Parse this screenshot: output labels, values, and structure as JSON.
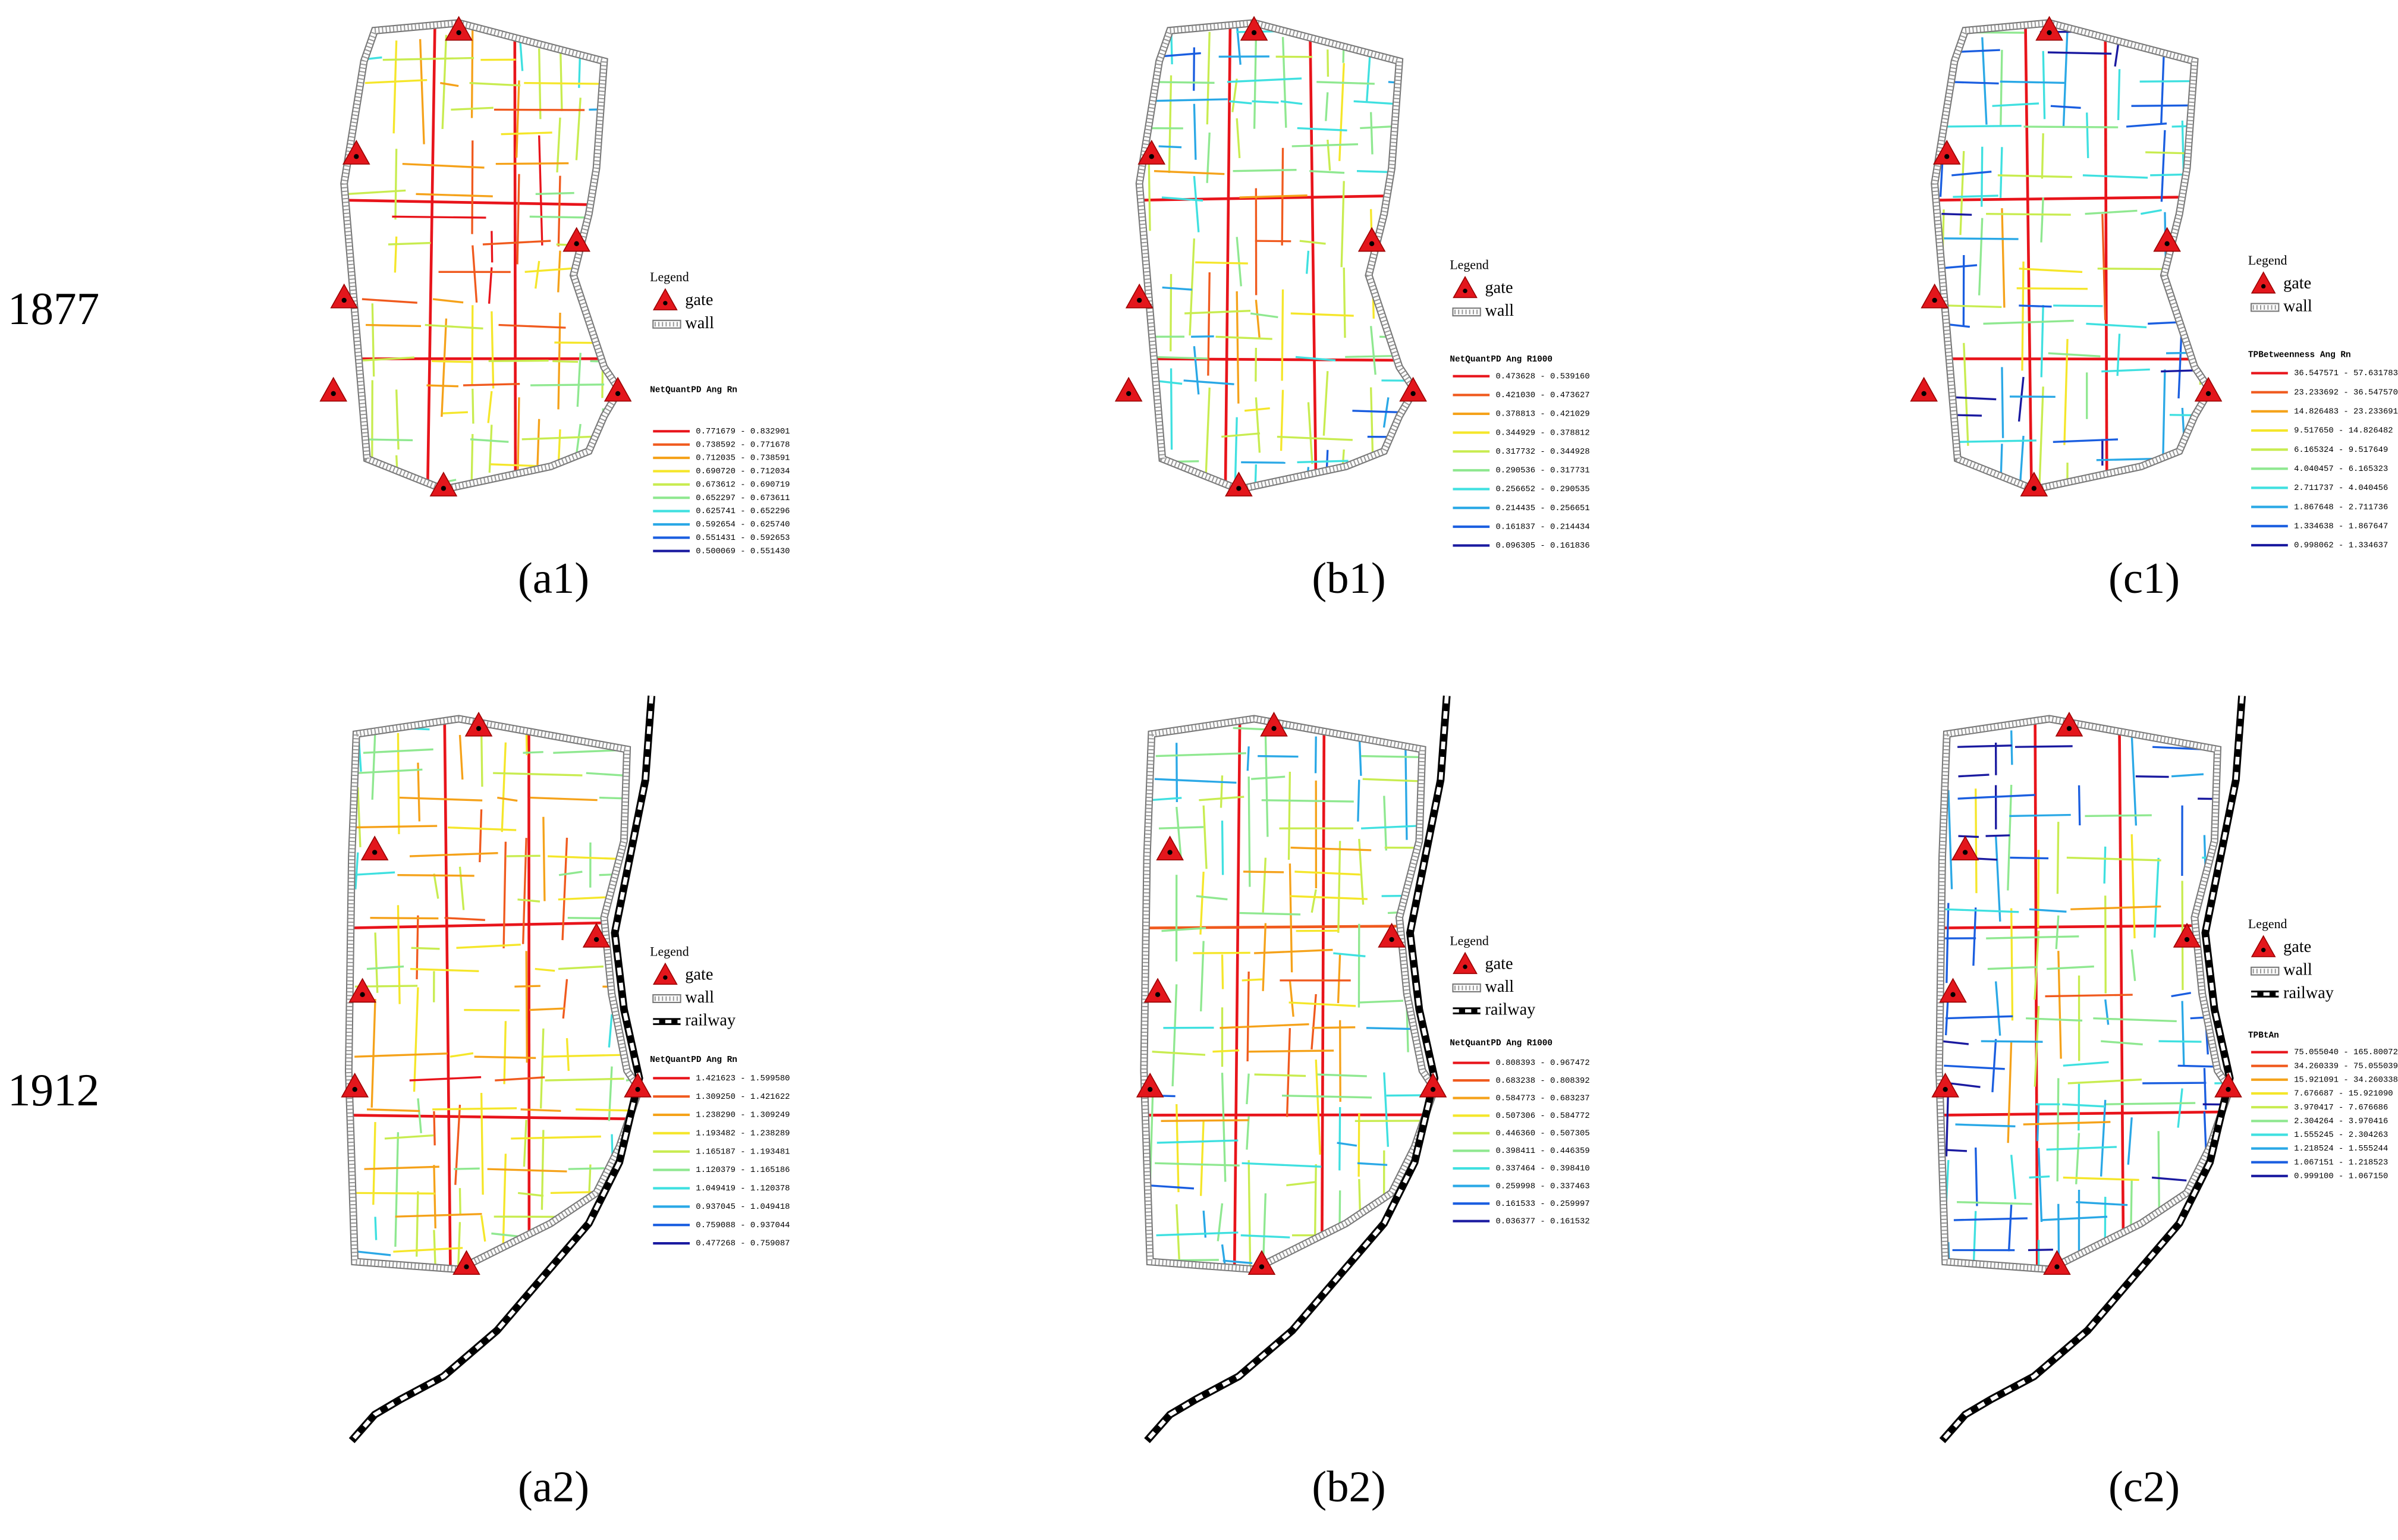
{
  "row_labels": [
    "1877",
    "1912"
  ],
  "colors": [
    "#e8141b",
    "#f05a1e",
    "#f5a21a",
    "#f5e62a",
    "#c8ec50",
    "#8fe890",
    "#3fe0e0",
    "#2aa8e6",
    "#1a5ee0",
    "#1a1aa0"
  ],
  "panels": [
    {
      "label": "(a1)",
      "legend": "Legend",
      "symbols": [
        "gate",
        "wall"
      ],
      "field": "NetQuantPD Ang Rn",
      "ranges": [
        "0.771679 - 0.832901",
        "0.738592 - 0.771678",
        "0.712035 - 0.738591",
        "0.690720 - 0.712034",
        "0.673612 - 0.690719",
        "0.652297 - 0.673611",
        "0.625741 - 0.652296",
        "0.592654 - 0.625740",
        "0.551431 - 0.592653",
        "0.500069 - 0.551430"
      ]
    },
    {
      "label": "(b1)",
      "legend": "Legend",
      "symbols": [
        "gate",
        "wall"
      ],
      "field": "NetQuantPD Ang R1000",
      "ranges": [
        "0.473628 - 0.539160",
        "0.421030 - 0.473627",
        "0.378813 - 0.421029",
        "0.344929 - 0.378812",
        "0.317732 - 0.344928",
        "0.290536 - 0.317731",
        "0.256652 - 0.290535",
        "0.214435 - 0.256651",
        "0.161837 - 0.214434",
        "0.096305 - 0.161836"
      ]
    },
    {
      "label": "(c1)",
      "legend": "Legend",
      "symbols": [
        "gate",
        "wall"
      ],
      "field": "TPBetweenness Ang Rn",
      "ranges": [
        "36.547571 - 57.631783",
        "23.233692 - 36.547570",
        "14.826483 - 23.233691",
        "9.517650 - 14.826482",
        "6.165324 - 9.517649",
        "4.040457 - 6.165323",
        "2.711737 - 4.040456",
        "1.867648 - 2.711736",
        "1.334638 - 1.867647",
        "0.998062 - 1.334637"
      ]
    },
    {
      "label": "(a2)",
      "legend": "Legend",
      "symbols": [
        "gate",
        "wall",
        "railway"
      ],
      "field": "NetQuantPD Ang Rn",
      "ranges": [
        "1.421623 - 1.599580",
        "1.309250 - 1.421622",
        "1.238290 - 1.309249",
        "1.193482 - 1.238289",
        "1.165187 - 1.193481",
        "1.120379 - 1.165186",
        "1.049419 - 1.120378",
        "0.937045 - 1.049418",
        "0.759088 - 0.937044",
        "0.477268 - 0.759087"
      ]
    },
    {
      "label": "(b2)",
      "legend": "Legend",
      "symbols": [
        "gate",
        "wall",
        "railway"
      ],
      "field": "NetQuantPD Ang R1000",
      "ranges": [
        "0.808393 - 0.967472",
        "0.683238 - 0.808392",
        "0.584773 - 0.683237",
        "0.507306 - 0.584772",
        "0.446360 - 0.507305",
        "0.398411 - 0.446359",
        "0.337464 - 0.398410",
        "0.259998 - 0.337463",
        "0.161533 - 0.259997",
        "0.036377 - 0.161532"
      ]
    },
    {
      "label": "(c2)",
      "legend": "Legend",
      "symbols": [
        "gate",
        "wall",
        "railway"
      ],
      "field": "TPBtAn",
      "ranges": [
        "75.055040 - 165.800720",
        "34.260339 - 75.055039",
        "15.921091 - 34.260338",
        "7.676687 - 15.921090",
        "3.970417 - 7.676686",
        "2.304264 - 3.970416",
        "1.555245 - 2.304263",
        "1.218524 - 1.555244",
        "1.067151 - 1.218523",
        "0.999100 - 1.067150"
      ]
    }
  ]
}
